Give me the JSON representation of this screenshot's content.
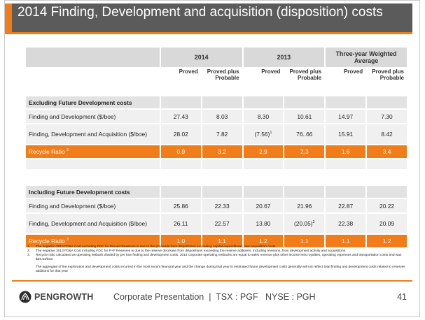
{
  "title": "2014 Finding, Development and acquisition (disposition) costs",
  "header": {
    "col_2014": "2014",
    "col_2013": "2013",
    "col_3yr": "Three-year Weighted Average"
  },
  "subheader": [
    "Proved",
    "Proved plus Probable",
    "Proved",
    "Proved plus Probable",
    "Proved",
    "Proved plus Probable"
  ],
  "sections": [
    {
      "title": "Excluding Future Development costs",
      "rows": [
        {
          "label": "Finding and Development ($/boe)",
          "values": [
            "27.43",
            "8.03",
            "8.30",
            "10.61",
            "14.97",
            "7.30"
          ]
        },
        {
          "label": "Finding, Development and Acquisition ($/boe)",
          "values": [
            "28.02",
            "7.82",
            "(7.56)",
            "76..66",
            "15.91",
            "8.42"
          ],
          "sup3": "1"
        }
      ],
      "recycle": {
        "label": "Recycle Ratio",
        "sup": "3",
        "values": [
          "0.9",
          "3.2",
          "2.9",
          "2.3",
          "1.6",
          "3.4"
        ]
      }
    },
    {
      "title": "Including Future Development costs",
      "rows": [
        {
          "label": "Finding and Development ($/boe)",
          "values": [
            "25.86",
            "22.33",
            "20.67",
            "21.96",
            "22.87",
            "20.22"
          ]
        },
        {
          "label": "Finding, Development and Acquisition ($/boe)",
          "values": [
            "26.11",
            "22.57",
            "13.80",
            "(20.05)",
            "22.38",
            "20.09"
          ],
          "sup4": "2"
        }
      ],
      "recycle": {
        "label": "Recycle Ratio",
        "sup": "3",
        "values": [
          "1.0",
          "1.1",
          "1.2",
          "1.1",
          "1.1",
          "1.2"
        ]
      }
    }
  ],
  "notes": [
    {
      "k": "1.",
      "text": "The negative 2013 FD&A Cost excluding FDC for Proved Reserves is due to the proceeds from dispositions exceeding capital expenditures plus acquisition costs."
    },
    {
      "k": "2.",
      "text": "The negative 2013 FD&A Cost including FDC for P+P Reserves is due to the reserve decrease from dispositions exceeding the reserve additions, including revisions, from development activity and acquisitions."
    },
    {
      "k": "3.",
      "text": "Recycle ratio calculated as operating netback divided by per boe finding and development costs. 2014 corporate operating netbacks are equal to sales revenue plus other income less royalties, operating expenses and transportation costs and was $25.64/boe."
    }
  ],
  "notes_para": "The aggregate of the exploration and development costs incurred in the most recent financial year and the change during that year in estimated future development costs generally will not reflect total finding and development costs related to reserves additions for that year",
  "footer": {
    "logo": "PENGROWTH",
    "text": "Corporate Presentation  |  TSX : PGF   NYSE : PGH",
    "page": "41"
  },
  "colors": {
    "accent": "#f07d1a",
    "title_bg": "#5b5b5b"
  }
}
